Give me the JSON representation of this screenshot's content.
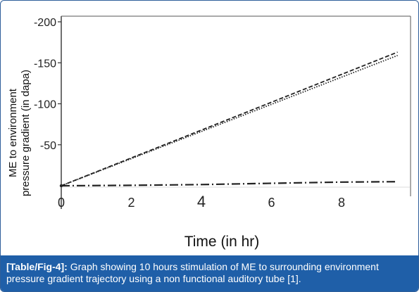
{
  "chart_data": {
    "type": "line",
    "title": "",
    "xlabel": "Time (in hr)",
    "ylabel_line1": "ME to environment",
    "ylabel_line2": "pressure gradient (in dapa)",
    "xlim": [
      0,
      9.6
    ],
    "ylim": [
      -200,
      10
    ],
    "y_inverted": true,
    "x_ticks": [
      0,
      2,
      4,
      6,
      8
    ],
    "x_tick_labels": [
      "0",
      "2",
      "4",
      "6",
      "8"
    ],
    "y_ticks": [
      -200,
      -150,
      -100,
      -50
    ],
    "y_tick_labels": [
      "-200",
      "-150",
      "-100",
      "-50"
    ],
    "grid": false,
    "legend": "none",
    "series": [
      {
        "style": "dashed",
        "x": [
          0,
          9.6
        ],
        "y": [
          0,
          -163
        ]
      },
      {
        "style": "dotted",
        "x": [
          0,
          9.6
        ],
        "y": [
          0,
          -159
        ]
      },
      {
        "style": "dashdot",
        "x": [
          0,
          2,
          4,
          6,
          8,
          9.6
        ],
        "y": [
          0,
          -0.5,
          -1.5,
          -3,
          -4.5,
          -5
        ]
      }
    ]
  },
  "caption": {
    "tag": "[Table/Fig-4]:",
    "text": "Graph showing 10 hours stimulation of ME to surrounding environment pressure gradient trajectory using a non functional auditory tube [1]."
  },
  "colors": {
    "caption_bg": "#1f5fa8",
    "border": "#2f5f9a",
    "series": "#222222"
  }
}
